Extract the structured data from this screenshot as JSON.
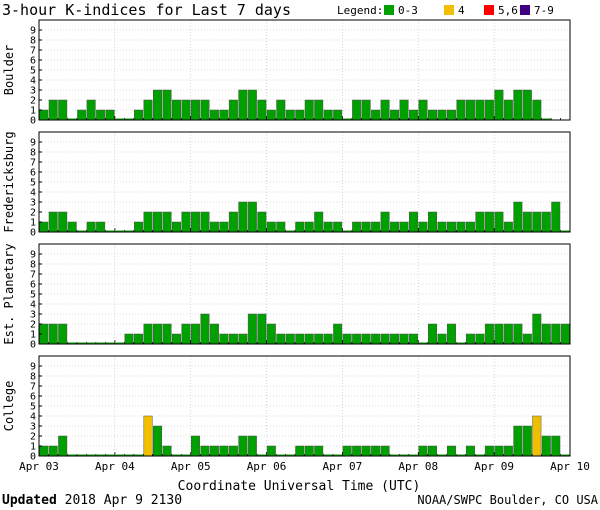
{
  "chart_data": {
    "type": "bar",
    "title": "3-hour K-indices for Last 7 days",
    "legend": {
      "label": "Legend:",
      "items": [
        {
          "label": "0-3",
          "color": "#00a000"
        },
        {
          "label": "4",
          "color": "#f0c000"
        },
        {
          "label": "5,6",
          "color": "#ff0000"
        },
        {
          "label": "7-9",
          "color": "#400080"
        }
      ],
      "placement": "top-right"
    },
    "xlabel": "Coordinate Universal Time (UTC)",
    "x_tick_labels": [
      "Apr 03",
      "Apr 04",
      "Apr 05",
      "Apr 06",
      "Apr 07",
      "Apr 08",
      "Apr 09",
      "Apr 10"
    ],
    "y_tick_labels": [
      "0",
      "1",
      "2",
      "3",
      "4",
      "5",
      "6",
      "7",
      "8",
      "9"
    ],
    "ylim": [
      0,
      9
    ],
    "intervals_per_day": 8,
    "grid": true,
    "series": [
      {
        "name": "Boulder",
        "values": [
          1,
          2,
          2,
          0,
          1,
          2,
          1,
          1,
          0,
          0,
          1,
          2,
          3,
          3,
          2,
          2,
          2,
          2,
          1,
          1,
          2,
          3,
          3,
          2,
          1,
          2,
          1,
          1,
          2,
          2,
          1,
          1,
          0,
          2,
          2,
          1,
          2,
          1,
          2,
          1,
          2,
          1,
          1,
          1,
          2,
          2,
          2,
          2,
          3,
          2,
          3,
          3,
          2,
          0
        ]
      },
      {
        "name": "Fredericksburg",
        "values": [
          1,
          2,
          2,
          1,
          0,
          1,
          1,
          0,
          0,
          0,
          1,
          2,
          2,
          2,
          1,
          2,
          2,
          2,
          1,
          1,
          2,
          3,
          3,
          2,
          1,
          1,
          0,
          1,
          1,
          2,
          1,
          1,
          0,
          1,
          1,
          1,
          2,
          1,
          1,
          2,
          1,
          2,
          1,
          1,
          1,
          1,
          2,
          2,
          2,
          1,
          3,
          2,
          2,
          2,
          3,
          0
        ]
      },
      {
        "name": "Est. Planetary",
        "values": [
          2,
          2,
          2,
          0,
          0,
          0,
          0,
          0,
          0,
          1,
          1,
          2,
          2,
          2,
          1,
          2,
          2,
          3,
          2,
          1,
          1,
          1,
          3,
          3,
          2,
          1,
          1,
          1,
          1,
          1,
          1,
          2,
          1,
          1,
          1,
          1,
          1,
          1,
          1,
          1,
          0,
          2,
          1,
          2,
          0,
          1,
          1,
          2,
          2,
          2,
          2,
          1,
          3,
          2,
          2,
          2,
          2
        ]
      },
      {
        "name": "College",
        "values": [
          1,
          1,
          2,
          0,
          0,
          0,
          0,
          0,
          0,
          0,
          0,
          4,
          3,
          1,
          0,
          0,
          2,
          1,
          1,
          1,
          1,
          2,
          2,
          0,
          1,
          0,
          0,
          1,
          1,
          1,
          0,
          0,
          1,
          1,
          1,
          1,
          1,
          0,
          0,
          0,
          1,
          1,
          0,
          1,
          0,
          1,
          0,
          1,
          1,
          1,
          3,
          3,
          4,
          2,
          2,
          0
        ]
      }
    ]
  },
  "footer": {
    "updated_label": "Updated",
    "updated_value": "2018 Apr  9 2130",
    "credit": "NOAA/SWPC Boulder, CO USA"
  }
}
